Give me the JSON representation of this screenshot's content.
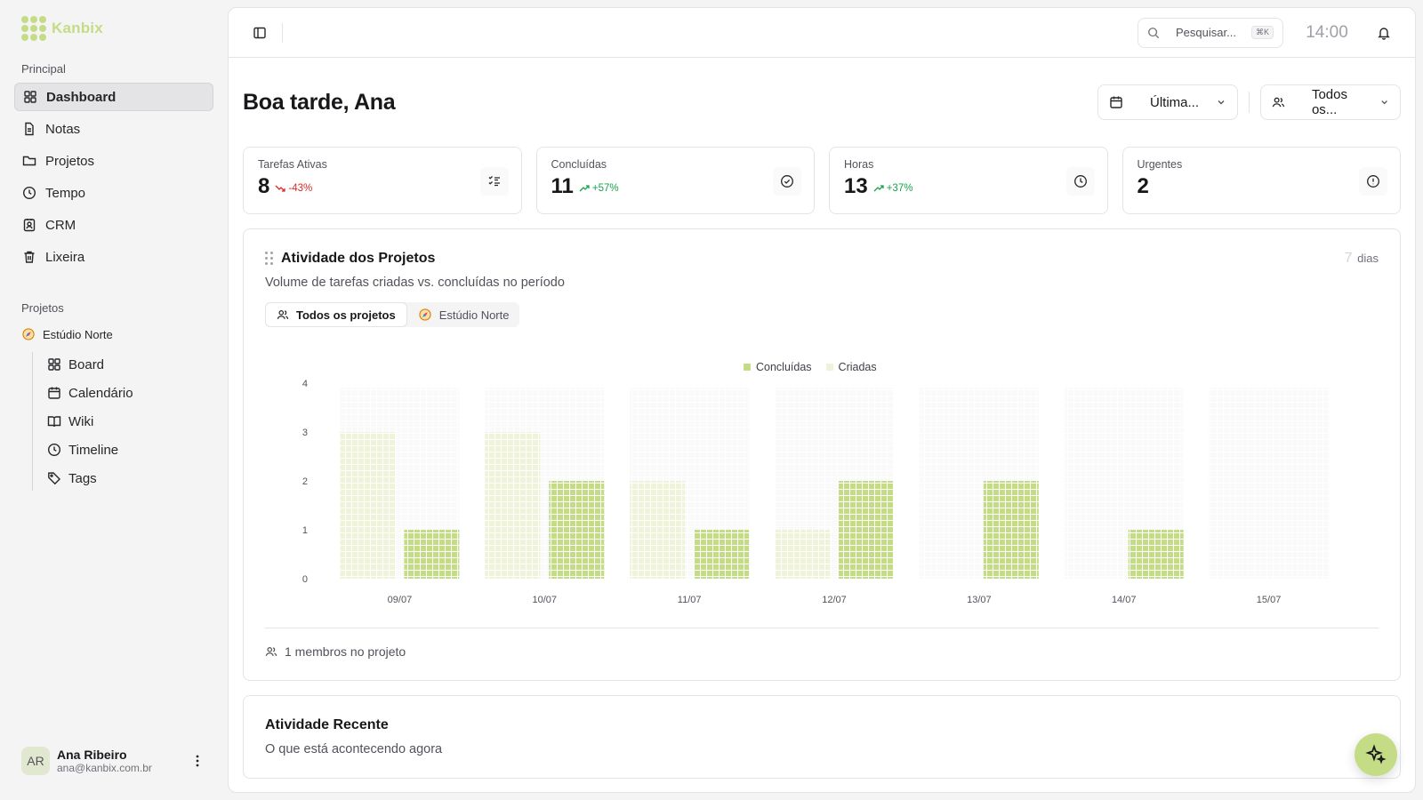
{
  "brand": {
    "name": "Kanbix",
    "color": "#c5dc86"
  },
  "sidebar": {
    "main_section": "Principal",
    "main_items": [
      {
        "label": "Dashboard",
        "icon": "grid-icon",
        "active": true
      },
      {
        "label": "Notas",
        "icon": "file-text-icon"
      },
      {
        "label": "Projetos",
        "icon": "folder-icon"
      },
      {
        "label": "Tempo",
        "icon": "clock-icon"
      },
      {
        "label": "CRM",
        "icon": "contact-icon"
      },
      {
        "label": "Lixeira",
        "icon": "trash-icon"
      }
    ],
    "projects_section": "Projetos",
    "project": {
      "name": "Estúdio Norte",
      "icon": "compass-icon"
    },
    "project_items": [
      {
        "label": "Board",
        "icon": "grid-icon"
      },
      {
        "label": "Calendário",
        "icon": "calendar-icon"
      },
      {
        "label": "Wiki",
        "icon": "book-icon"
      },
      {
        "label": "Timeline",
        "icon": "clock-icon"
      },
      {
        "label": "Tags",
        "icon": "tag-icon"
      }
    ],
    "user": {
      "initials": "AR",
      "name": "Ana Ribeiro",
      "email": "ana@kanbix.com.br"
    }
  },
  "topbar": {
    "search_placeholder": "Pesquisar...",
    "search_shortcut": "⌘K",
    "time": "14:00"
  },
  "header": {
    "greeting": "Boa tarde, Ana",
    "date_filter": "Última...",
    "people_filter": "Todos os..."
  },
  "stats": [
    {
      "label": "Tarefas Ativas",
      "value": "8",
      "delta": "-43%",
      "trend": "down",
      "icon": "list-check-icon"
    },
    {
      "label": "Concluídas",
      "value": "11",
      "delta": "+57%",
      "trend": "up",
      "icon": "check-circle-icon"
    },
    {
      "label": "Horas",
      "value": "13",
      "delta": "+37%",
      "trend": "up",
      "icon": "clock-icon"
    },
    {
      "label": "Urgentes",
      "value": "2",
      "delta": "",
      "trend": "",
      "icon": "alert-circle-icon"
    }
  ],
  "activity": {
    "title": "Atividade dos Projetos",
    "subtitle": "Volume de tarefas criadas vs. concluídas no período",
    "range_num": "7",
    "range_unit": "dias",
    "tabs": [
      {
        "label": "Todos os projetos",
        "icon": "users-icon",
        "active": true
      },
      {
        "label": "Estúdio Norte",
        "icon": "compass-icon",
        "active": false
      }
    ],
    "footer": "1 membros no projeto"
  },
  "chart_data": {
    "type": "bar",
    "categories": [
      "09/07",
      "10/07",
      "11/07",
      "12/07",
      "13/07",
      "14/07",
      "15/07"
    ],
    "series": [
      {
        "name": "Criadas",
        "values": [
          3,
          3,
          2,
          1,
          0,
          0,
          0
        ],
        "color": "#eef3d9"
      },
      {
        "name": "Concluídas",
        "values": [
          1,
          2,
          1,
          2,
          2,
          1,
          0
        ],
        "color": "#c5dc86"
      }
    ],
    "ylim": [
      0,
      4
    ],
    "yticks": [
      0,
      1,
      2,
      3,
      4
    ],
    "grid": false,
    "legend": "top-center"
  },
  "recent": {
    "title": "Atividade Recente",
    "subtitle": "O que está acontecendo agora"
  }
}
